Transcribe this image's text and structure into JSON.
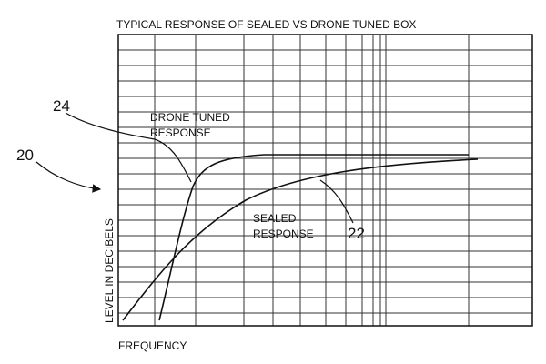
{
  "title": "TYPICAL RESPONSE OF SEALED VS DRONE TUNED BOX",
  "axes": {
    "y_label": "LEVEL IN DECIBELS",
    "x_label": "FREQUENCY"
  },
  "curves": [
    {
      "label": [
        "DRONE TUNED",
        "RESPONSE"
      ],
      "ref": "24"
    },
    {
      "label": [
        "SEALED",
        "RESPONSE"
      ],
      "ref": "22"
    }
  ],
  "figure_ref": "20"
}
